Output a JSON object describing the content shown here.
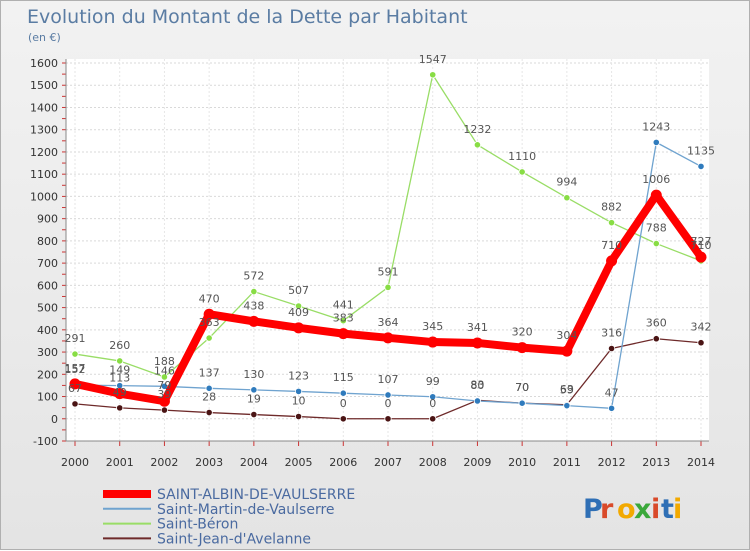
{
  "chart_data": {
    "type": "line",
    "title": "Evolution du Montant de la Dette par Habitant",
    "subtitle": "(en €)",
    "xlabel": "",
    "ylabel": "",
    "ylim": [
      -100,
      1600
    ],
    "yticks": [
      -100,
      0,
      100,
      200,
      300,
      400,
      500,
      600,
      700,
      800,
      900,
      1000,
      1100,
      1200,
      1300,
      1400,
      1500,
      1600
    ],
    "categories": [
      "2000",
      "2001",
      "2002",
      "2003",
      "2004",
      "2005",
      "2006",
      "2007",
      "2008",
      "2009",
      "2010",
      "2011",
      "2012",
      "2013",
      "2014"
    ],
    "grid": true,
    "legend_position": "bottom-left",
    "series": [
      {
        "name": "Saint-Jean-d'Avelanne",
        "color": "#6e2a2a",
        "marker": "#4a1414",
        "values": [
          67,
          49,
          39,
          28,
          19,
          10,
          0,
          0,
          0,
          83,
          70,
          63,
          316,
          360,
          342
        ]
      },
      {
        "name": "Saint-Béron",
        "color": "#99dd66",
        "marker": "#88dd44",
        "values": [
          291,
          260,
          188,
          363,
          572,
          507,
          441,
          591,
          1547,
          1232,
          1110,
          994,
          882,
          788,
          710
        ]
      },
      {
        "name": "Saint-Martin-de-Vaulserre",
        "color": "#6fa3cf",
        "marker": "#2f7bbd",
        "values": [
          152,
          149,
          146,
          137,
          130,
          123,
          115,
          107,
          99,
          80,
          70,
          59,
          47,
          1243,
          1135
        ]
      },
      {
        "name": "SAINT-ALBIN-DE-VAULSERRE",
        "color": "#ff0000",
        "marker": "#ff0000",
        "values": [
          157,
          113,
          79,
          470,
          438,
          409,
          383,
          364,
          345,
          341,
          320,
          304,
          710,
          1006,
          727
        ]
      }
    ],
    "legend_order": [
      "SAINT-ALBIN-DE-VAULSERRE",
      "Saint-Martin-de-Vaulserre",
      "Saint-Béron",
      "Saint-Jean-d'Avelanne"
    ]
  },
  "logo": {
    "text": "Proxiti",
    "colors": [
      "#2f6fb5",
      "#d94a2a",
      "#f2a900",
      "#3aa83a",
      "#d94a2a",
      "#2f6fb5",
      "#f2a900"
    ]
  }
}
